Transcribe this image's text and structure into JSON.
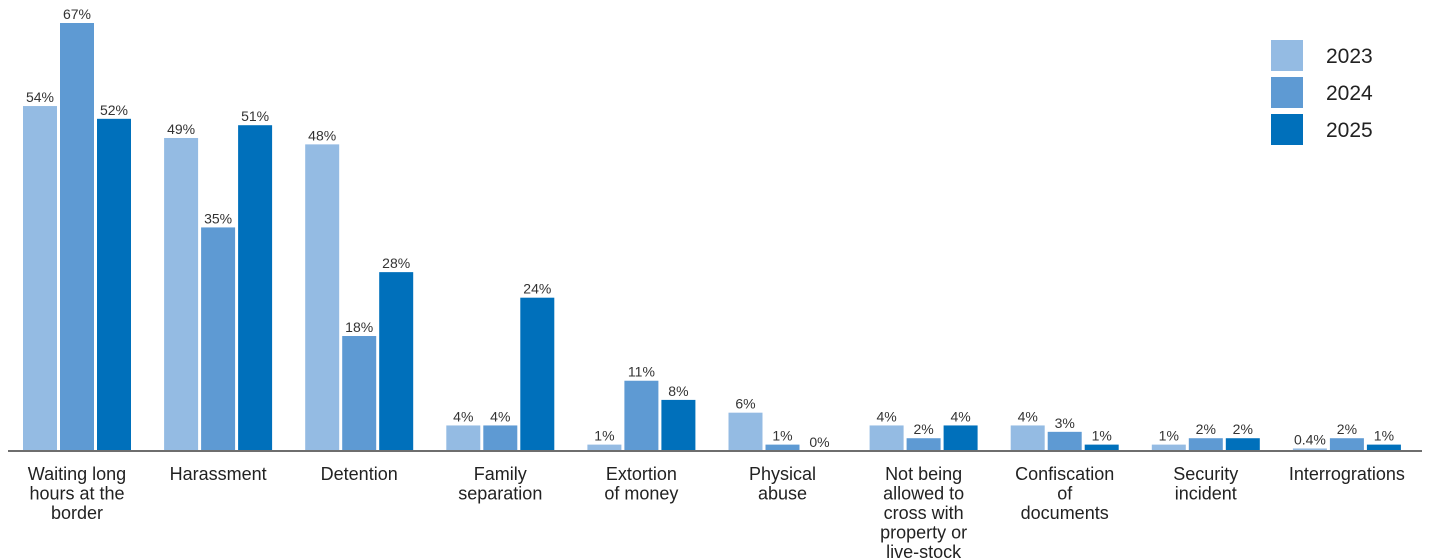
{
  "chart_data": {
    "type": "bar",
    "title": "",
    "xlabel": "",
    "ylabel": "",
    "ylim": [
      0,
      70
    ],
    "grid": false,
    "legend_position": "top-right",
    "value_suffix": "%",
    "categories": [
      [
        "Waiting long",
        "hours at the",
        "border"
      ],
      [
        "Harassment"
      ],
      [
        "Detention"
      ],
      [
        "Family",
        "separation"
      ],
      [
        "Extortion",
        "of money"
      ],
      [
        "Physical",
        "abuse"
      ],
      [
        "Not being",
        "allowed to",
        "cross with",
        "property or",
        "live-stock"
      ],
      [
        "Confiscation",
        "of",
        "documents"
      ],
      [
        "Security",
        "incident"
      ],
      [
        "Interrogrations"
      ]
    ],
    "series": [
      {
        "name": "2023",
        "color": "#94bbe3",
        "values": [
          54,
          49,
          48,
          4,
          1,
          6,
          4,
          4,
          1,
          0.4
        ]
      },
      {
        "name": "2024",
        "color": "#5e9ad3",
        "values": [
          67,
          35,
          18,
          4,
          11,
          1,
          2,
          3,
          2,
          2
        ]
      },
      {
        "name": "2025",
        "color": "#0070bb",
        "values": [
          52,
          51,
          28,
          24,
          8,
          0,
          4,
          1,
          2,
          1
        ]
      }
    ]
  }
}
